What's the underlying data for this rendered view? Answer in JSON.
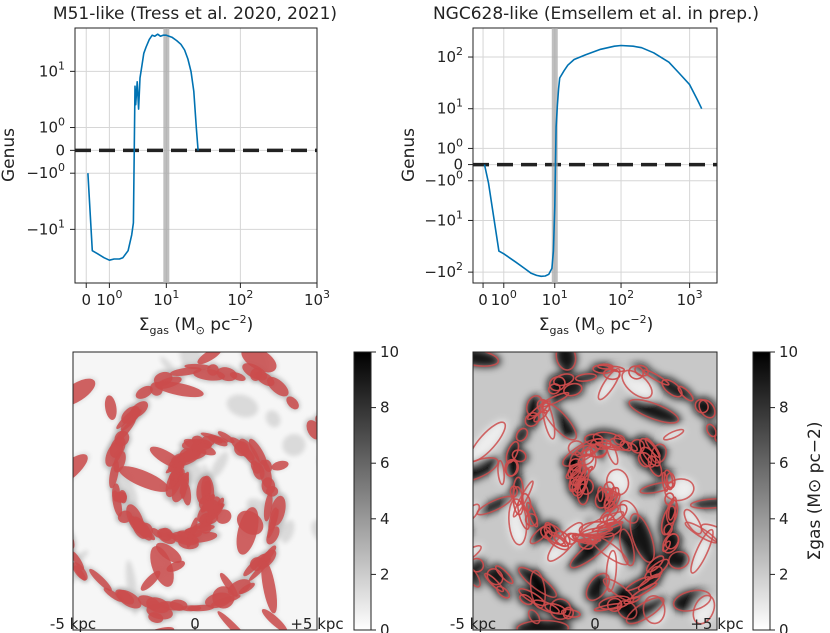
{
  "panels": [
    {
      "title": "M51-like (Tress et al. 2020, 2021)",
      "ylabel": "Genus",
      "xlabel_main": "Σ",
      "xlabel_sub": "gas",
      "xlabel_rest": " (M",
      "xlabel_unit": " pc",
      "xlabel_exp": "−2",
      "xlabel_close": ")"
    },
    {
      "title": "NGC628-like (Emsellem et al. in prep.)",
      "ylabel": "Genus",
      "xlabel_main": "Σ",
      "xlabel_sub": "gas",
      "xlabel_rest": " (M",
      "xlabel_unit": " pc",
      "xlabel_exp": "−2",
      "xlabel_close": ")"
    }
  ],
  "chart_data": [
    {
      "type": "line",
      "title": "M51-like (Tress et al. 2020, 2021)",
      "ylabel": "Genus",
      "xlabel": "Σgas (M⊙ pc−2)",
      "xscale": "symlog",
      "yscale": "symlog",
      "xlim": [
        -0.4,
        1000
      ],
      "ylim": [
        -55,
        40
      ],
      "xticks": [
        "0",
        "10^0",
        "10^1",
        "10^2",
        "10^3"
      ],
      "yticks": [
        "10^1",
        "10^0",
        "0",
        "−10^0",
        "−10^1"
      ],
      "grid": true,
      "series": [
        {
          "color": "#0072b2",
          "x": [
            0.05,
            0.2,
            0.4,
            0.7,
            1.0,
            1.3,
            1.7,
            2.0,
            2.5,
            2.9,
            3.1,
            3.3,
            3.4,
            3.6,
            3.8,
            4.0,
            4.3,
            4.6,
            5.0,
            5.6,
            6.2,
            6.8,
            7.5,
            8.2,
            9.0,
            10.0,
            12.0,
            14.0,
            16.0,
            18.0,
            20.0,
            22.0,
            24.0,
            26.0,
            27.5
          ],
          "y": [
            -1.0,
            -20,
            -22,
            -25,
            -27,
            -26,
            -26,
            -25,
            -20,
            -12,
            -8,
            6,
            3,
            7,
            2.5,
            8,
            12,
            18,
            22,
            28,
            32,
            31,
            33,
            31,
            32,
            32,
            30,
            27,
            24,
            20,
            15,
            10,
            5,
            1,
            0
          ]
        }
      ],
      "reference_lines": [
        {
          "type": "horizontal",
          "y": 0,
          "style": "dashed",
          "color": "#222222"
        },
        {
          "type": "vertical_band",
          "x": 10,
          "color": "#aaaaaa"
        }
      ]
    },
    {
      "type": "line",
      "title": "NGC628-like (Emsellem et al. in prep.)",
      "ylabel": "Genus",
      "xlabel": "Σgas (M⊙ pc−2)",
      "xscale": "symlog",
      "yscale": "symlog",
      "xlim": [
        -0.4,
        2500
      ],
      "ylim": [
        -160,
        350
      ],
      "xticks": [
        "0",
        "10^0",
        "10^1",
        "10^2",
        "10^3"
      ],
      "yticks": [
        "10^2",
        "10^1",
        "10^0",
        "0",
        "−10^0",
        "−10^1",
        "−10^2"
      ],
      "grid": true,
      "series": [
        {
          "color": "#0072b2",
          "x": [
            0.05,
            0.2,
            0.7,
            1.0,
            2.0,
            3.0,
            4.0,
            5.0,
            6.0,
            7.0,
            8.0,
            9.0,
            9.5,
            10.0,
            10.5,
            11.0,
            11.5,
            12.0,
            14.0,
            16.0,
            20.0,
            30.0,
            50.0,
            80.0,
            100.0,
            150.0,
            200.0,
            300.0,
            500.0,
            700.0,
            1000.0,
            1300.0,
            1500.0
          ],
          "y": [
            0,
            -1.2,
            -40,
            -45,
            -65,
            -85,
            -105,
            -115,
            -120,
            -118,
            -110,
            -85,
            -40,
            -5,
            4,
            12,
            25,
            40,
            55,
            70,
            90,
            110,
            140,
            160,
            165,
            160,
            150,
            120,
            80,
            50,
            30,
            15,
            10
          ]
        }
      ],
      "reference_lines": [
        {
          "type": "horizontal",
          "y": 0,
          "style": "dashed",
          "color": "#222222"
        },
        {
          "type": "vertical_band",
          "x": 10,
          "color": "#aaaaaa"
        }
      ]
    },
    {
      "type": "heatmap",
      "description_colorbar": "gray_r",
      "colorbar_ticks": [
        "0",
        "2",
        "4",
        "6",
        "8",
        "10"
      ],
      "colorbar_label": "",
      "clim": [
        0,
        10
      ],
      "xticks": [
        "-5 kpc",
        "0",
        "+5 kpc"
      ],
      "contour_color": "#cc4c4c"
    },
    {
      "type": "heatmap",
      "description_colorbar": "gray_r",
      "colorbar_ticks": [
        "0",
        "2",
        "4",
        "6",
        "8",
        "10"
      ],
      "colorbar_label": "Σgas (M⊙ pc−2)",
      "clim": [
        0,
        10
      ],
      "xticks": [
        "-5 kpc",
        "0",
        "+5 kpc"
      ],
      "contour_color": "#cc4c4c"
    }
  ]
}
